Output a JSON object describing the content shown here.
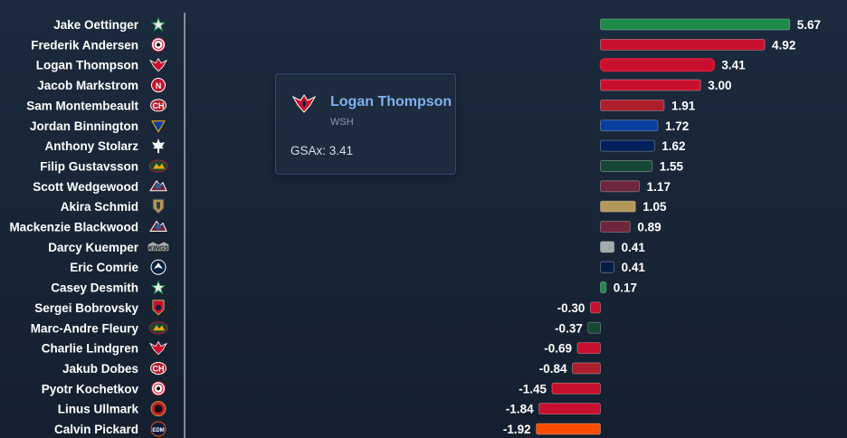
{
  "chart_data": {
    "type": "bar",
    "orientation": "horizontal",
    "metric": "GSAx",
    "categories": [
      "Jake Oettinger",
      "Frederik Andersen",
      "Logan Thompson",
      "Jacob Markstrom",
      "Sam Montembeault",
      "Jordan Binnington",
      "Anthony Stolarz",
      "Filip Gustavsson",
      "Scott Wedgewood",
      "Akira Schmid",
      "Mackenzie Blackwood",
      "Darcy Kuemper",
      "Eric Comrie",
      "Casey Desmith",
      "Sergei Bobrovsky",
      "Marc-Andre Fleury",
      "Charlie Lindgren",
      "Jakub Dobes",
      "Pyotr Kochetkov",
      "Linus Ullmark",
      "Calvin Pickard"
    ],
    "values": [
      5.67,
      4.92,
      3.41,
      3.0,
      1.91,
      1.72,
      1.62,
      1.55,
      1.17,
      1.05,
      0.89,
      0.41,
      0.41,
      0.17,
      -0.3,
      -0.37,
      -0.69,
      -0.84,
      -1.45,
      -1.84,
      -1.92
    ],
    "value_labels": [
      "5.67",
      "4.92",
      "3.41",
      "3.00",
      "1.91",
      "1.72",
      "1.62",
      "1.55",
      "1.17",
      "1.05",
      "0.89",
      "0.41",
      "0.41",
      "0.17",
      "-0.30",
      "-0.37",
      "-0.69",
      "-0.84",
      "-1.45",
      "-1.84",
      "-1.92"
    ],
    "teams": [
      "DAL",
      "CAR",
      "WSH",
      "NJD",
      "MTL",
      "STL",
      "TOR",
      "MIN",
      "COL",
      "VGK",
      "COL",
      "LAK",
      "WPG",
      "DAL",
      "FLA",
      "MIN",
      "WSH",
      "MTL",
      "CAR",
      "OTT",
      "EDM"
    ],
    "bar_colors": [
      "#1e8a4a",
      "#c8102e",
      "#c8102e",
      "#c8102e",
      "#af1e2d",
      "#0a3ea0",
      "#00205b",
      "#154734",
      "#6f263d",
      "#b4975a",
      "#6f263d",
      "#a2aaad",
      "#041e42",
      "#1e8a4a",
      "#c8102e",
      "#154734",
      "#c8102e",
      "#af1e2d",
      "#c8102e",
      "#c8102e",
      "#fc4c02"
    ],
    "logo_icons": [
      "stars-icon",
      "hurricanes-icon",
      "capitals-icon",
      "devils-icon",
      "canadiens-icon",
      "blues-icon",
      "maple-leafs-icon",
      "wild-icon",
      "avalanche-icon",
      "golden-knights-icon",
      "avalanche-icon",
      "kings-icon",
      "jets-icon",
      "stars-icon",
      "panthers-icon",
      "wild-icon",
      "capitals-icon",
      "canadiens-icon",
      "hurricanes-icon",
      "senators-icon",
      "oilers-icon"
    ],
    "highlighted": "Logan Thompson"
  },
  "tooltip": {
    "name": "Logan Thompson",
    "team": "WSH",
    "stat": "GSAx: 3.41",
    "logo_icon": "capitals-icon"
  }
}
